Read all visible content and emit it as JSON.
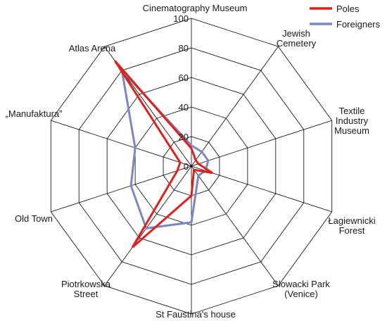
{
  "chart_data": {
    "type": "radar",
    "categories": [
      "Cinematography Museum",
      "Jewish Cemetery",
      "Textile Industry Museum",
      "Łagiewnicki Forest",
      "Słowacki Park (Venice)",
      "St Faustina's house",
      "Piotrkowska Street",
      "Old Town",
      "„Manufaktura”",
      "Atlas Arena"
    ],
    "category_lines": [
      [
        "Cinematography Museum"
      ],
      [
        "Jewish",
        "Cemetery"
      ],
      [
        "Textile",
        "Industry",
        "Museum"
      ],
      [
        "Łagiewnicki",
        "Forest"
      ],
      [
        "Słowacki Park",
        "(Venice)"
      ],
      [
        "St Faustina's house"
      ],
      [
        "Piotrkowska",
        "Street"
      ],
      [
        "Old Town"
      ],
      [
        "„Manufaktura”"
      ],
      [
        "Atlas Arena"
      ]
    ],
    "range": [
      0,
      100
    ],
    "ticks": [
      0,
      20,
      40,
      60,
      80,
      100
    ],
    "series": [
      {
        "name": "Poles",
        "color": "#e0201c",
        "values": [
          12,
          5,
          5,
          15,
          3,
          20,
          68,
          10,
          8,
          88
        ]
      },
      {
        "name": "Foreigners",
        "color": "#7b86c8",
        "values": [
          14,
          12,
          12,
          10,
          8,
          38,
          52,
          43,
          40,
          80
        ]
      }
    ],
    "legend_position": "top-right",
    "grid": true
  }
}
